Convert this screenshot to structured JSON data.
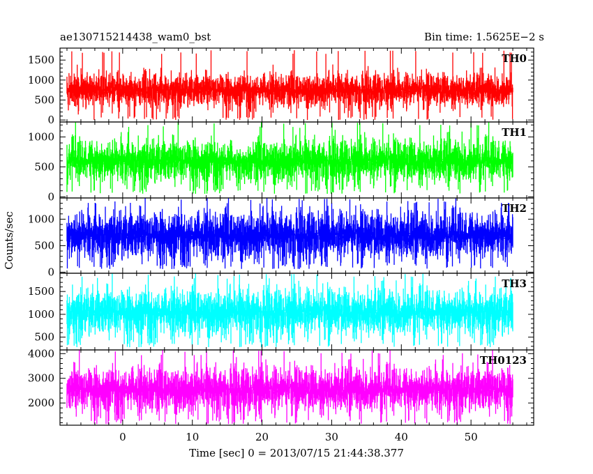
{
  "header": {
    "obs_id": "ae130715214438_wam0_bst",
    "bin_time": "Bin time: 1.5625E−2 s"
  },
  "chart_data": {
    "type": "line",
    "title": "ae130715214438_wam0_bst",
    "subtitle": "Bin time: 1.5625E−2 s",
    "xlabel": "Time [sec] 0 = 2013/07/15 21:44:38.377",
    "ylabel": "Counts/sec",
    "xlim": [
      -9,
      59
    ],
    "x_data_range": [
      -8,
      56
    ],
    "xticks": [
      0,
      10,
      20,
      30,
      40,
      50
    ],
    "grid": false,
    "panels": [
      {
        "name": "TH0",
        "color": "#ff0000",
        "ylim": [
          -50,
          1800
        ],
        "yticks": [
          0,
          500,
          1000,
          1500
        ],
        "trace_min": 0,
        "trace_mean": 750,
        "trace_spread": 220,
        "trace_peak": 1750,
        "notch": null
      },
      {
        "name": "TH1",
        "color": "#00ff00",
        "ylim": [
          -20,
          1250
        ],
        "yticks": [
          0,
          500,
          1000
        ],
        "trace_min": 50,
        "trace_mean": 600,
        "trace_spread": 190,
        "trace_peak": 1250,
        "notch": [
          15.5,
          18.5
        ]
      },
      {
        "name": "TH2",
        "color": "#0000ff",
        "ylim": [
          -20,
          1400
        ],
        "yticks": [
          0,
          500,
          1000
        ],
        "trace_min": 60,
        "trace_mean": 700,
        "trace_spread": 240,
        "trace_peak": 1400,
        "notch": null
      },
      {
        "name": "TH3",
        "color": "#00ffff",
        "ylim": [
          220,
          1900
        ],
        "yticks": [
          500,
          1000,
          1500
        ],
        "trace_min": 280,
        "trace_mean": 1050,
        "trace_spread": 270,
        "trace_peak": 1900,
        "notch": null
      },
      {
        "name": "TH0123",
        "color": "#ff00ff",
        "ylim": [
          1100,
          4150
        ],
        "yticks": [
          2000,
          3000,
          4000
        ],
        "trace_min": 1150,
        "trace_mean": 2550,
        "trace_spread": 480,
        "trace_peak": 4150,
        "notch": null
      }
    ]
  }
}
